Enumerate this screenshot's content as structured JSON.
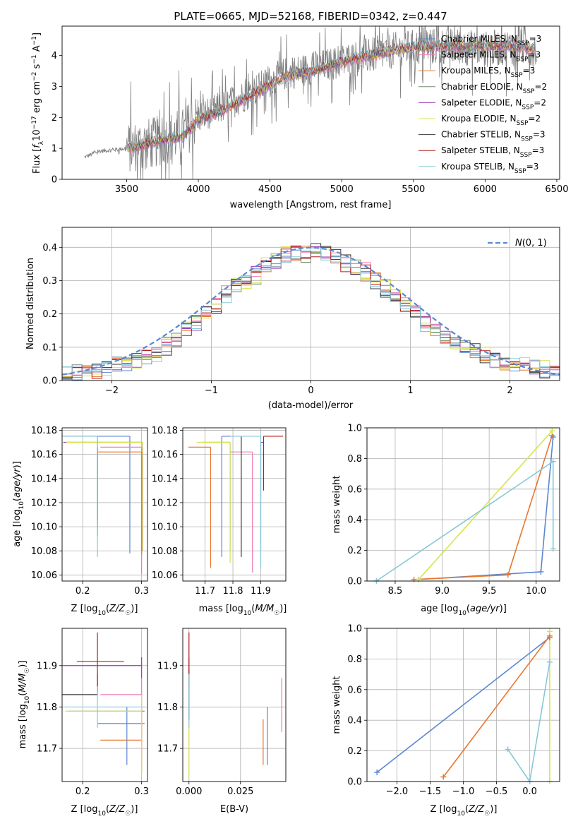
{
  "figure_title": "PLATE=0665, MJD=52168, FIBERID=0342, z=0.447",
  "colors": {
    "Chabrier MILES": "#5b87d1",
    "Salpeter MILES": "#f07bb6",
    "Kroupa MILES": "#e8772e",
    "Chabrier ELODIE": "#6f8f6f",
    "Salpeter ELODIE": "#9a3bb8",
    "Kroupa ELODIE": "#d7e44a",
    "Chabrier STELIB": "#3a3a3a",
    "Salpeter STELIB": "#b51d1d",
    "Kroupa STELIB": "#86c8d8",
    "normal": "#5b87d1",
    "grid": "#b0b0b0"
  },
  "chart_data": [
    {
      "id": "spectrum",
      "type": "line",
      "title": "PLATE=0665, MJD=52168, FIBERID=0342, z=0.447",
      "xlabel": "wavelength [Angstrom, rest frame]",
      "ylabel": "Flux [f_λ 10^-17 erg cm^-2 s^-1 A^-1]",
      "xlim": [
        3050,
        6520
      ],
      "ylim": [
        0,
        4.95
      ],
      "xticks": [
        3500,
        4000,
        4500,
        5000,
        5500,
        6000,
        6500
      ],
      "yticks": [
        0,
        1,
        2,
        3,
        4
      ],
      "grid": false,
      "legend_position": "top-right",
      "legend": [
        {
          "label": "Chabrier MILES, N",
          "sub": "SSP",
          "tail": "=3"
        },
        {
          "label": "Salpeter MILES, N",
          "sub": "SSP",
          "tail": "=3"
        },
        {
          "label": "Kroupa MILES, N",
          "sub": "SSP",
          "tail": "=3"
        },
        {
          "label": "Chabrier ELODIE, N",
          "sub": "SSP",
          "tail": "=2"
        },
        {
          "label": "Salpeter ELODIE, N",
          "sub": "SSP",
          "tail": "=2"
        },
        {
          "label": "Kroupa ELODIE, N",
          "sub": "SSP",
          "tail": "=2"
        },
        {
          "label": "Chabrier STELIB, N",
          "sub": "SSP",
          "tail": "=3"
        },
        {
          "label": "Salpeter STELIB, N",
          "sub": "SSP",
          "tail": "=3"
        },
        {
          "label": "Kroupa STELIB, N",
          "sub": "SSP",
          "tail": "=3"
        }
      ],
      "data_trend": {
        "x": [
          3200,
          3300,
          3500,
          3700,
          3900,
          4000,
          4200,
          4400,
          4600,
          4800,
          5000,
          5200,
          5400,
          5600,
          5800,
          6000,
          6200,
          6350
        ],
        "y": [
          0.7,
          0.9,
          1.0,
          1.2,
          1.5,
          2.0,
          2.4,
          2.9,
          3.4,
          3.6,
          3.8,
          4.0,
          4.2,
          4.3,
          4.3,
          4.2,
          4.3,
          4.2
        ]
      },
      "model_trend": {
        "x": [
          3500,
          3700,
          3900,
          4000,
          4200,
          4400,
          4600,
          4800,
          5000,
          5200,
          5400,
          5600,
          5800,
          6000,
          6200,
          6350
        ],
        "y": [
          1.0,
          1.2,
          1.4,
          1.9,
          2.3,
          2.8,
          3.3,
          3.5,
          3.8,
          4.0,
          4.2,
          4.3,
          4.3,
          4.3,
          4.3,
          4.2
        ]
      }
    },
    {
      "id": "residuals",
      "type": "line",
      "xlabel": "(data-model)/error",
      "ylabel": "Normed distribution",
      "xlim": [
        -2.5,
        2.5
      ],
      "ylim": [
        0,
        0.46
      ],
      "xticks": [
        -2,
        -1,
        0,
        1,
        2
      ],
      "yticks": [
        0.0,
        0.1,
        0.2,
        0.3,
        0.4
      ],
      "grid": true,
      "legend_position": "top-right",
      "legend": [
        {
          "label": "N(0, 1)"
        }
      ],
      "series": [
        {
          "name": "normal",
          "x_from": -2.5,
          "x_to": 2.5,
          "function": "standard normal pdf"
        },
        {
          "name": "Chabrier MILES",
          "bin_edges_from": -2.5,
          "bin_width": 0.1,
          "values": [
            0.02,
            0.02,
            0.03,
            0.03,
            0.04,
            0.05,
            0.05,
            0.06,
            0.07,
            0.08,
            0.1,
            0.12,
            0.15,
            0.17,
            0.2,
            0.22,
            0.25,
            0.28,
            0.31,
            0.33,
            0.35,
            0.36,
            0.37,
            0.38,
            0.39,
            0.39,
            0.38,
            0.37,
            0.36,
            0.34,
            0.32,
            0.3,
            0.27,
            0.25,
            0.22,
            0.2,
            0.17,
            0.15,
            0.13,
            0.11,
            0.1,
            0.09,
            0.07,
            0.06,
            0.05,
            0.05,
            0.04,
            0.04,
            0.03,
            0.03
          ]
        },
        {
          "name": "Salpeter ELODIE",
          "bin_edges_from": -2.5,
          "bin_width": 0.1,
          "values": [
            0.02,
            0.03,
            0.03,
            0.03,
            0.04,
            0.05,
            0.06,
            0.06,
            0.07,
            0.09,
            0.11,
            0.13,
            0.16,
            0.18,
            0.21,
            0.23,
            0.26,
            0.29,
            0.3,
            0.3,
            0.35,
            0.37,
            0.38,
            0.39,
            0.38,
            0.38,
            0.39,
            0.38,
            0.35,
            0.34,
            0.33,
            0.31,
            0.28,
            0.27,
            0.23,
            0.21,
            0.18,
            0.16,
            0.14,
            0.12,
            0.11,
            0.1,
            0.08,
            0.07,
            0.06,
            0.06,
            0.05,
            0.05,
            0.04,
            0.04
          ]
        }
      ]
    },
    {
      "id": "age-vs-Z",
      "type": "scatter",
      "xlabel": "Z [log10(Z/Z☉)]",
      "ylabel": "age [log10(age/yr)]",
      "xlim": [
        0.165,
        0.31
      ],
      "ylim": [
        10.055,
        10.182
      ],
      "xticks": [
        0.2,
        0.3
      ],
      "yticks": [
        10.06,
        10.08,
        10.1,
        10.12,
        10.14,
        10.16,
        10.18
      ],
      "grid": true,
      "points": [
        {
          "series": "Chabrier MILES",
          "x": 0.28,
          "y": 10.175,
          "xerr": [
            0.115,
            0.0
          ],
          "yerr": [
            0.097,
            0.0
          ]
        },
        {
          "series": "Salpeter MILES",
          "x": 0.3,
          "y": 10.166,
          "xerr": [
            0.07,
            0.0
          ],
          "yerr": [
            0.105,
            0.0
          ]
        },
        {
          "series": "Kroupa MILES",
          "x": 0.3,
          "y": 10.162,
          "xerr": [
            0.075,
            0.0
          ],
          "yerr": [
            0.085,
            0.0
          ]
        },
        {
          "series": "Chabrier ELODIE",
          "x": 0.225,
          "y": 10.175,
          "xerr": [
            0.06,
            0.0
          ],
          "yerr": [
            0.075,
            0.0
          ]
        },
        {
          "series": "Salpeter ELODIE",
          "x": 0.302,
          "y": 10.17,
          "xerr": [
            0.135,
            0.0
          ],
          "yerr": [
            0.09,
            0.0
          ]
        },
        {
          "series": "Kroupa ELODIE",
          "x": 0.302,
          "y": 10.17,
          "xerr": [
            0.13,
            0.0
          ],
          "yerr": [
            0.09,
            0.0
          ]
        },
        {
          "series": "Chabrier STELIB",
          "x": 0.225,
          "y": 10.166,
          "xerr": [
            0.0,
            0.0
          ],
          "yerr": [
            0.074,
            0.0
          ]
        },
        {
          "series": "Salpeter STELIB",
          "x": 0.225,
          "y": 10.166,
          "xerr": [
            0.0,
            0.0
          ],
          "yerr": [
            0.06,
            0.0
          ]
        },
        {
          "series": "Kroupa STELIB",
          "x": 0.225,
          "y": 10.175,
          "xerr": [
            0.06,
            0.0
          ],
          "yerr": [
            0.1,
            0.0
          ]
        }
      ]
    },
    {
      "id": "age-vs-mass",
      "type": "scatter",
      "xlabel": "mass [log10(M/M☉)]",
      "ylabel": "",
      "xlim": [
        11.62,
        11.99
      ],
      "ylim": [
        10.055,
        10.182
      ],
      "xticks": [
        11.7,
        11.8,
        11.9
      ],
      "yticks": [
        10.06,
        10.08,
        10.1,
        10.12,
        10.14,
        10.16,
        10.18
      ],
      "grid": true,
      "points": [
        {
          "series": "Chabrier MILES",
          "x": 11.76,
          "y": 10.175,
          "xerr": [
            0.0,
            0.06
          ],
          "yerr": [
            0.1,
            0.0
          ]
        },
        {
          "series": "Salpeter MILES",
          "x": 11.87,
          "y": 10.162,
          "xerr": [
            0.08,
            0.0
          ],
          "yerr": [
            0.1,
            0.0
          ]
        },
        {
          "series": "Kroupa MILES",
          "x": 11.72,
          "y": 10.166,
          "xerr": [
            0.08,
            0.0
          ],
          "yerr": [
            0.1,
            0.0
          ]
        },
        {
          "series": "Chabrier ELODIE",
          "x": 11.79,
          "y": 10.17,
          "xerr": [
            0.1,
            0.0
          ],
          "yerr": [
            0.09,
            0.0
          ]
        },
        {
          "series": "Salpeter ELODIE",
          "x": 11.9,
          "y": 10.17,
          "xerr": [
            0.0,
            0.01
          ],
          "yerr": [
            0.09,
            0.0
          ]
        },
        {
          "series": "Kroupa ELODIE",
          "x": 11.79,
          "y": 10.17,
          "xerr": [
            0.12,
            0.0
          ],
          "yerr": [
            0.1,
            0.0
          ]
        },
        {
          "series": "Chabrier STELIB",
          "x": 11.83,
          "y": 10.175,
          "xerr": [
            0.0,
            0.0
          ],
          "yerr": [
            0.1,
            0.0
          ]
        },
        {
          "series": "Salpeter STELIB",
          "x": 11.91,
          "y": 10.175,
          "xerr": [
            0.0,
            0.07
          ],
          "yerr": [
            0.045,
            0.0
          ]
        },
        {
          "series": "Kroupa STELIB",
          "x": 11.9,
          "y": 10.175,
          "xerr": [
            0.11,
            0.0
          ],
          "yerr": [
            0.11,
            0.0
          ]
        }
      ]
    },
    {
      "id": "weight-vs-age",
      "type": "line",
      "xlabel": "age [log10(age/yr)]",
      "ylabel": "mass weight",
      "xlim": [
        8.2,
        10.25
      ],
      "ylim": [
        0.0,
        1.0
      ],
      "xticks": [
        8.5,
        9.0,
        9.5,
        10.0
      ],
      "yticks": [
        0.0,
        0.2,
        0.4,
        0.6,
        0.8,
        1.0
      ],
      "grid": true,
      "series": [
        {
          "name": "Chabrier MILES",
          "x": [
            8.75,
            10.05,
            10.18
          ],
          "y": [
            0.01,
            0.06,
            0.94
          ]
        },
        {
          "name": "Kroupa MILES",
          "x": [
            8.7,
            9.7,
            10.17
          ],
          "y": [
            0.01,
            0.04,
            0.95
          ]
        },
        {
          "name": "Kroupa ELODIE",
          "x": [
            8.75,
            10.17
          ],
          "y": [
            0.01,
            0.98
          ]
        },
        {
          "name": "Kroupa STELIB",
          "x": [
            8.3,
            10.18,
            10.18
          ],
          "y": [
            0.0,
            0.78,
            0.21
          ]
        }
      ]
    },
    {
      "id": "mass-vs-Z",
      "type": "scatter",
      "xlabel": "Z [log10(Z/Z☉)]",
      "ylabel": "mass [log10(M/M☉)]",
      "xlim": [
        0.165,
        0.31
      ],
      "ylim": [
        11.62,
        11.99
      ],
      "xticks": [
        0.2,
        0.3
      ],
      "yticks": [
        11.7,
        11.8,
        11.9
      ],
      "grid": true,
      "points": [
        {
          "series": "Chabrier MILES",
          "x": 0.275,
          "y": 11.76,
          "xerr": [
            0.05,
            0.03
          ],
          "yerr": [
            0.1,
            0.04
          ]
        },
        {
          "series": "Salpeter MILES",
          "x": 0.3,
          "y": 11.83,
          "xerr": [
            0.07,
            0.0
          ],
          "yerr": [
            0.15,
            0.04
          ]
        },
        {
          "series": "Kroupa MILES",
          "x": 0.3,
          "y": 11.72,
          "xerr": [
            0.07,
            0.0
          ],
          "yerr": [
            0.08,
            0.05
          ]
        },
        {
          "series": "Chabrier ELODIE",
          "x": 0.225,
          "y": 11.79,
          "xerr": [
            0.05,
            0.08
          ],
          "yerr": [
            0.0,
            0.0
          ]
        },
        {
          "series": "Salpeter ELODIE",
          "x": 0.3,
          "y": 11.9,
          "xerr": [
            0.135,
            0.0
          ],
          "yerr": [
            0.03,
            0.02
          ]
        },
        {
          "series": "Kroupa ELODIE",
          "x": 0.3,
          "y": 11.79,
          "xerr": [
            0.13,
            0.0
          ],
          "yerr": [
            0.15,
            0.04
          ]
        },
        {
          "series": "Chabrier STELIB",
          "x": 0.225,
          "y": 11.83,
          "xerr": [
            0.06,
            0.0
          ],
          "yerr": [
            0.0,
            0.05
          ]
        },
        {
          "series": "Salpeter STELIB",
          "x": 0.225,
          "y": 11.91,
          "xerr": [
            0.035,
            0.045
          ],
          "yerr": [
            0.07,
            0.07
          ]
        },
        {
          "series": "Kroupa STELIB",
          "x": 0.225,
          "y": 11.8,
          "xerr": [
            0.06,
            0.08
          ],
          "yerr": [
            0.05,
            0.05
          ]
        }
      ]
    },
    {
      "id": "mass-vs-EBV",
      "type": "scatter",
      "xlabel": "E(B-V)",
      "ylabel": "",
      "xlim": [
        -0.003,
        0.047
      ],
      "ylim": [
        11.62,
        11.99
      ],
      "xticks": [
        0.0,
        0.025
      ],
      "yticks": [
        11.7,
        11.8,
        11.9
      ],
      "grid": true,
      "points": [
        {
          "series": "Chabrier MILES",
          "x": 0.038,
          "y": 11.72,
          "xerr": [
            0.0,
            0.0
          ],
          "yerr": [
            0.06,
            0.08
          ]
        },
        {
          "series": "Salpeter MILES",
          "x": 0.045,
          "y": 11.8,
          "xerr": [
            0.0,
            0.0
          ],
          "yerr": [
            0.06,
            0.07
          ]
        },
        {
          "series": "Kroupa MILES",
          "x": 0.036,
          "y": 11.72,
          "xerr": [
            0.0,
            0.0
          ],
          "yerr": [
            0.06,
            0.05
          ]
        },
        {
          "series": "Chabrier ELODIE",
          "x": 0.0,
          "y": 11.78,
          "xerr": [
            0.0,
            0.0
          ],
          "yerr": [
            0.0,
            0.0
          ]
        },
        {
          "series": "Salpeter ELODIE",
          "x": 0.0,
          "y": 11.9,
          "xerr": [
            0.0,
            0.0
          ],
          "yerr": [
            0.03,
            0.02
          ]
        },
        {
          "series": "Kroupa ELODIE",
          "x": 0.0,
          "y": 11.7,
          "xerr": [
            0.0,
            0.0
          ],
          "yerr": [
            0.07,
            0.07
          ]
        },
        {
          "series": "Chabrier STELIB",
          "x": 0.0,
          "y": 11.83,
          "xerr": [
            0.0,
            0.0
          ],
          "yerr": [
            0.06,
            0.06
          ]
        },
        {
          "series": "Salpeter STELIB",
          "x": 0.0,
          "y": 11.91,
          "xerr": [
            0.0,
            0.0
          ],
          "yerr": [
            0.07,
            0.07
          ]
        },
        {
          "series": "Kroupa STELIB",
          "x": 0.0,
          "y": 11.8,
          "xerr": [
            0.0,
            0.0
          ],
          "yerr": [
            0.05,
            0.08
          ]
        }
      ]
    },
    {
      "id": "weight-vs-Z",
      "type": "line",
      "xlabel": "Z [log10(Z/Z☉)]",
      "ylabel": "mass weight",
      "xlim": [
        -2.45,
        0.45
      ],
      "ylim": [
        0.0,
        1.0
      ],
      "xticks": [
        -2.0,
        -1.5,
        -1.0,
        -0.5,
        0.0
      ],
      "yticks": [
        0.0,
        0.2,
        0.4,
        0.6,
        0.8,
        1.0
      ],
      "grid": true,
      "series": [
        {
          "name": "Chabrier MILES",
          "x": [
            -2.3,
            0.3
          ],
          "y": [
            0.06,
            0.94
          ]
        },
        {
          "name": "Kroupa MILES",
          "x": [
            -1.3,
            0.3
          ],
          "y": [
            0.03,
            0.95
          ]
        },
        {
          "name": "Kroupa ELODIE",
          "x": [
            0.3,
            0.3
          ],
          "y": [
            0.0,
            0.98
          ]
        },
        {
          "name": "Kroupa STELIB",
          "x": [
            -0.33,
            0.0,
            0.3
          ],
          "y": [
            0.21,
            0.0,
            0.78
          ]
        }
      ]
    }
  ]
}
